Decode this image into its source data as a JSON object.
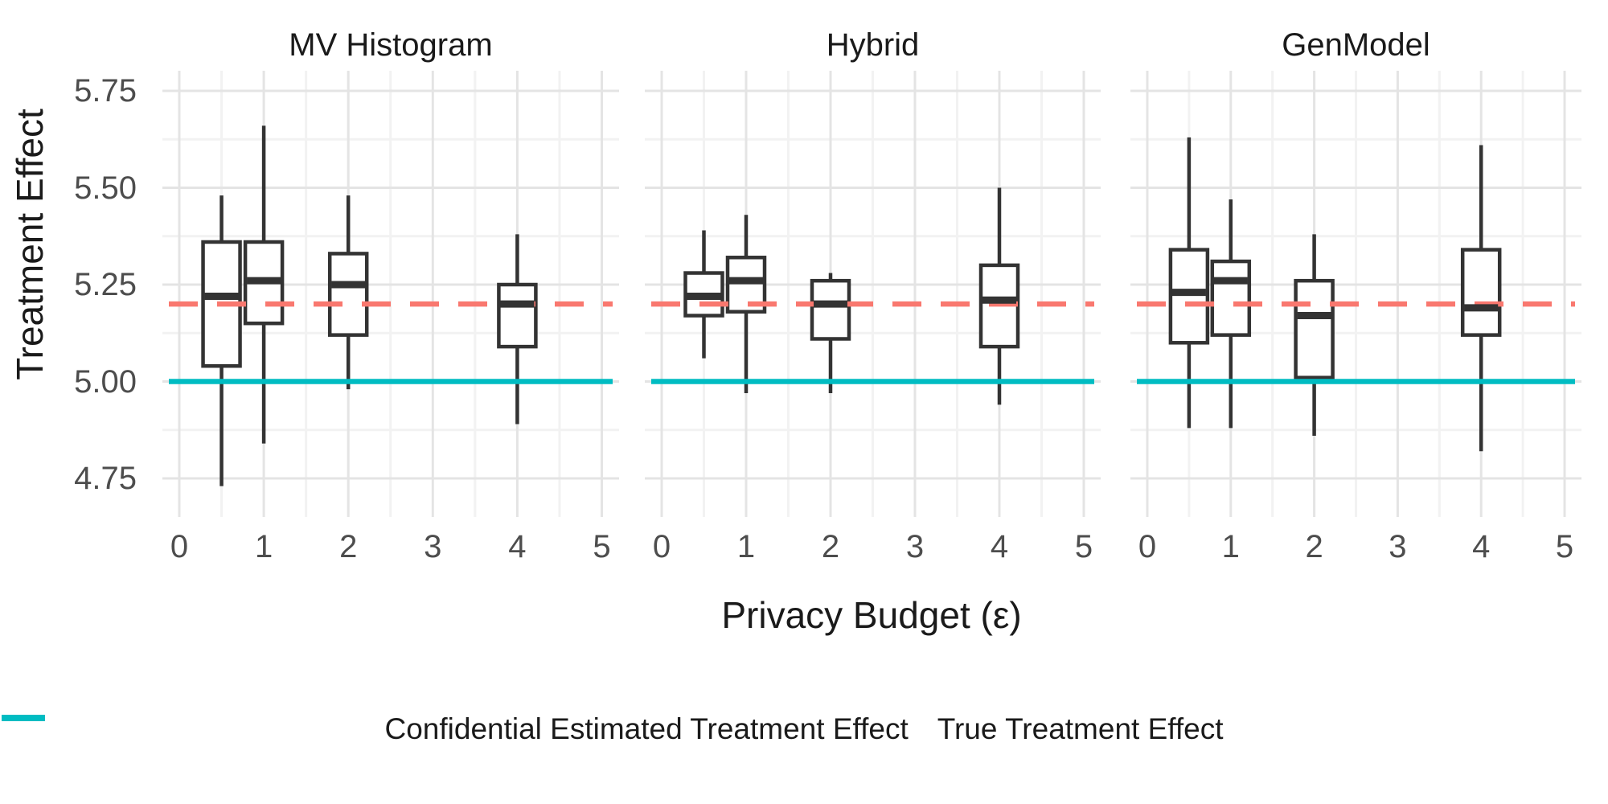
{
  "figure": {
    "xlabel": "Privacy Budget (ε)",
    "ylabel": "Treatment Effect"
  },
  "chart_data": {
    "type": "boxplot",
    "facet_labels": [
      "MV Histogram",
      "Hybrid",
      "GenModel"
    ],
    "xlabel": "Privacy Budget (ε)",
    "ylabel": "Treatment Effect",
    "x_ticks": [
      0,
      1,
      2,
      3,
      4,
      5
    ],
    "x_tick_labels": [
      "0",
      "1",
      "2",
      "3",
      "4",
      "5"
    ],
    "x_minor_gridlines": [
      0.5,
      1.5,
      2.5,
      3.5,
      4.5
    ],
    "y_ticks": [
      5.75,
      5.5,
      5.25,
      5.0,
      4.75
    ],
    "y_tick_labels": [
      "5.75",
      "5.50",
      "5.25",
      "5.00",
      "4.75"
    ],
    "y_minor_gridlines": [
      5.625,
      5.375,
      5.125,
      4.875
    ],
    "ylim": [
      4.65,
      5.8
    ],
    "grid": true,
    "legend_position": "bottom",
    "facets": [
      {
        "label": "MV Histogram",
        "boxes": [
          {
            "eps": 0.5,
            "whisker_low": 4.73,
            "q1": 5.04,
            "median": 5.22,
            "q3": 5.36,
            "whisker_high": 5.48
          },
          {
            "eps": 1,
            "whisker_low": 4.84,
            "q1": 5.15,
            "median": 5.26,
            "q3": 5.36,
            "whisker_high": 5.66
          },
          {
            "eps": 2,
            "whisker_low": 4.98,
            "q1": 5.12,
            "median": 5.25,
            "q3": 5.33,
            "whisker_high": 5.48
          },
          {
            "eps": 4,
            "whisker_low": 4.89,
            "q1": 5.09,
            "median": 5.2,
            "q3": 5.25,
            "whisker_high": 5.38
          }
        ]
      },
      {
        "label": "Hybrid",
        "boxes": [
          {
            "eps": 0.5,
            "whisker_low": 5.06,
            "q1": 5.17,
            "median": 5.22,
            "q3": 5.28,
            "whisker_high": 5.39
          },
          {
            "eps": 1,
            "whisker_low": 4.97,
            "q1": 5.18,
            "median": 5.26,
            "q3": 5.32,
            "whisker_high": 5.43
          },
          {
            "eps": 2,
            "whisker_low": 4.97,
            "q1": 5.11,
            "median": 5.2,
            "q3": 5.26,
            "whisker_high": 5.28
          },
          {
            "eps": 4,
            "whisker_low": 4.94,
            "q1": 5.09,
            "median": 5.21,
            "q3": 5.3,
            "whisker_high": 5.5
          }
        ]
      },
      {
        "label": "GenModel",
        "boxes": [
          {
            "eps": 0.5,
            "whisker_low": 4.88,
            "q1": 5.1,
            "median": 5.23,
            "q3": 5.34,
            "whisker_high": 5.63
          },
          {
            "eps": 1,
            "whisker_low": 4.88,
            "q1": 5.12,
            "median": 5.26,
            "q3": 5.31,
            "whisker_high": 5.47
          },
          {
            "eps": 2,
            "whisker_low": 4.86,
            "q1": 5.01,
            "median": 5.17,
            "q3": 5.26,
            "whisker_high": 5.38
          },
          {
            "eps": 4,
            "whisker_low": 4.82,
            "q1": 5.12,
            "median": 5.19,
            "q3": 5.34,
            "whisker_high": 5.61
          }
        ]
      }
    ],
    "ref_lines": [
      {
        "label": "Confidential Estimated Treatment Effect",
        "value": 5.2,
        "style": "dashed",
        "color": "#F9786F"
      },
      {
        "label": "True Treatment Effect",
        "value": 5.0,
        "style": "solid",
        "color": "#00BCC2"
      }
    ],
    "style": {
      "box_stroke": "#333333",
      "box_fill": "#ffffff",
      "grid_major": "#E4E4E4",
      "grid_minor": "#F2F2F2",
      "tick_label_color": "#4d4d4d",
      "title_color": "#1a1a1a",
      "background": "#ffffff"
    }
  }
}
